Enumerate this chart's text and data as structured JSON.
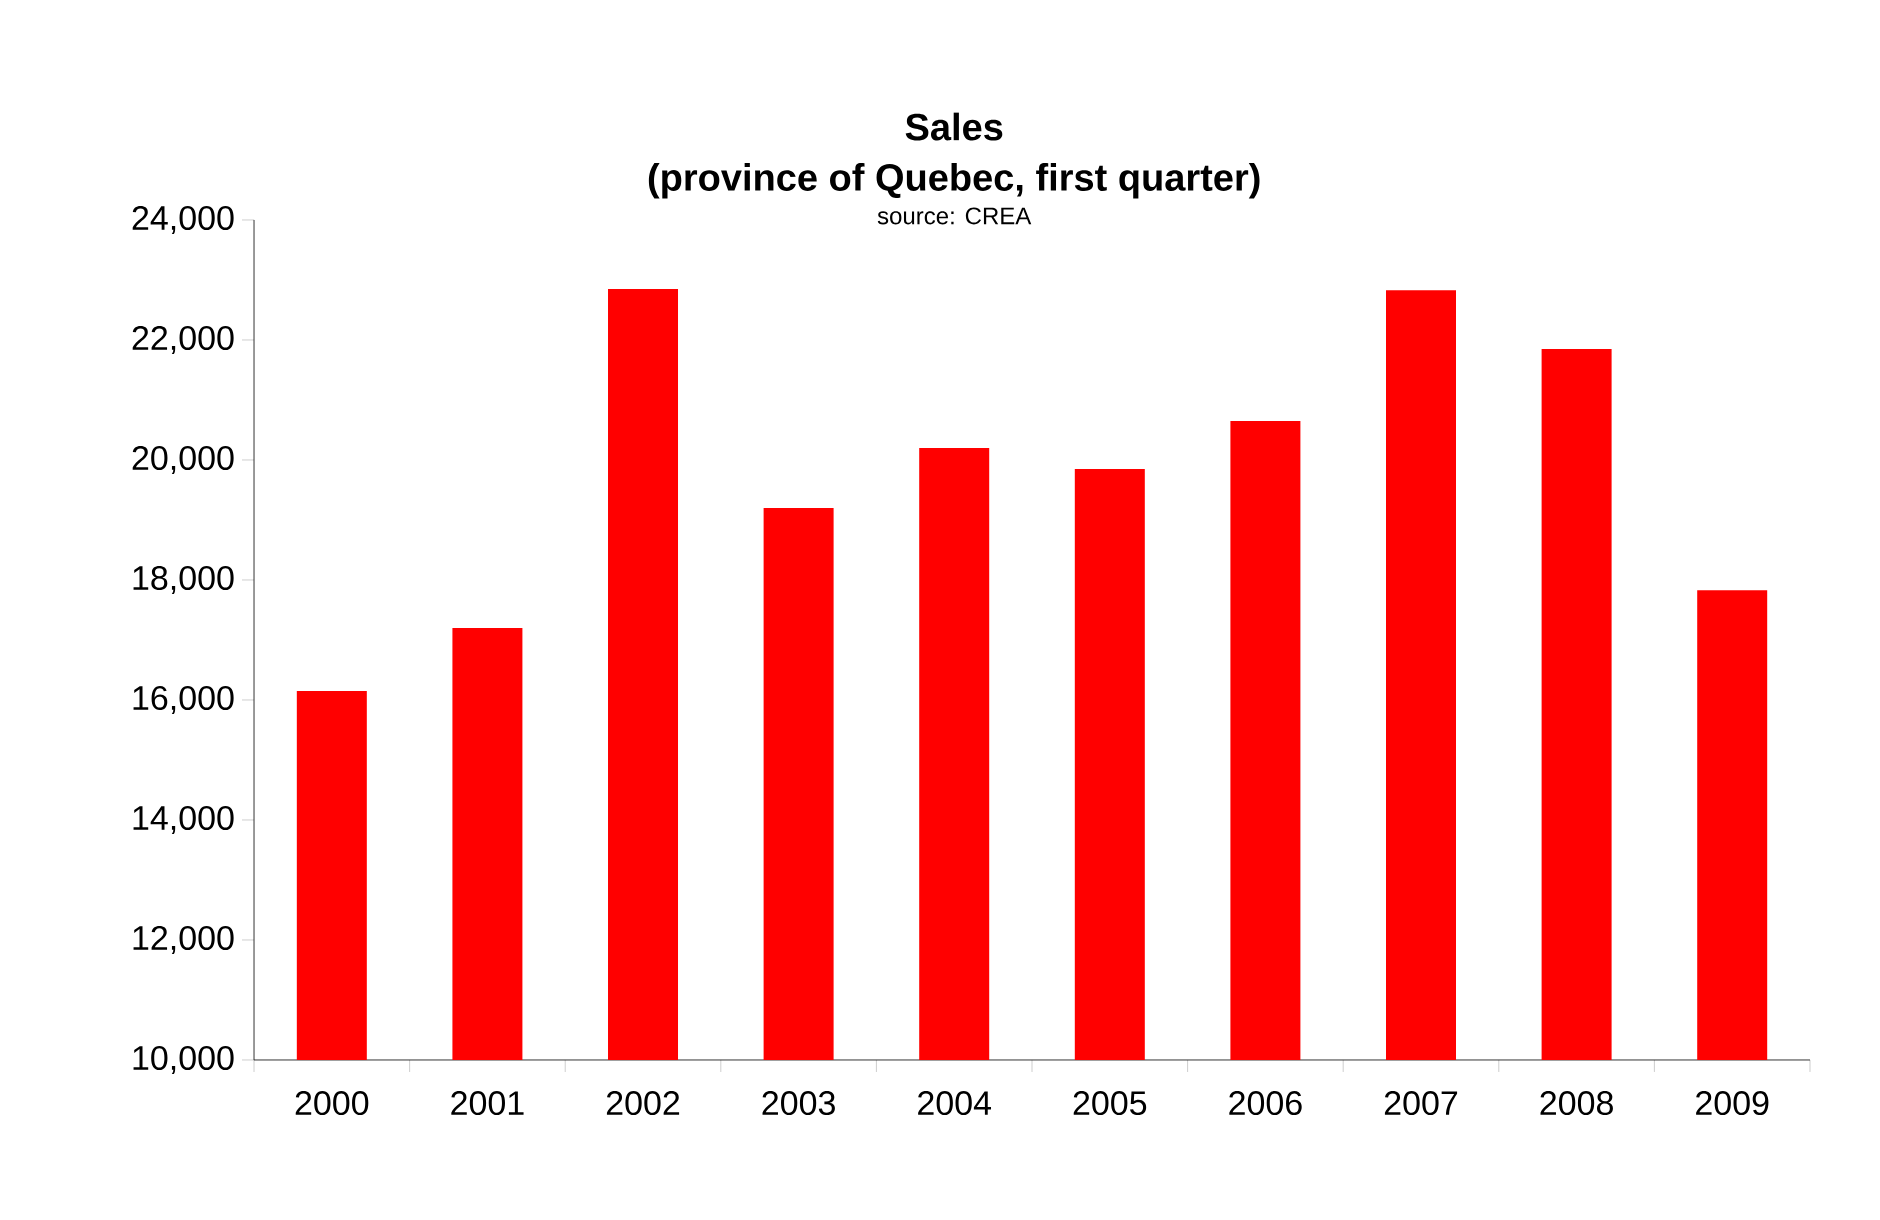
{
  "chart_data": {
    "type": "bar",
    "title": "Sales",
    "subtitle": "(province of Quebec, first quarter)",
    "annotations": [
      "source: CREA"
    ],
    "categories": [
      "2000",
      "2001",
      "2002",
      "2003",
      "2004",
      "2005",
      "2006",
      "2007",
      "2008",
      "2009"
    ],
    "values": [
      16150,
      17200,
      22850,
      19200,
      20200,
      19850,
      20650,
      22830,
      21850,
      17830
    ],
    "color": "#ff0000",
    "ylim": [
      10000,
      24000
    ],
    "yticks": [
      {
        "value": 10000,
        "label": "10,000"
      },
      {
        "value": 12000,
        "label": "12,000"
      },
      {
        "value": 14000,
        "label": "14,000"
      },
      {
        "value": 16000,
        "label": "16,000"
      },
      {
        "value": 18000,
        "label": "18,000"
      },
      {
        "value": 20000,
        "label": "20,000"
      },
      {
        "value": 22000,
        "label": "22,000"
      },
      {
        "value": 24000,
        "label": "24,000"
      }
    ],
    "grid": false
  }
}
